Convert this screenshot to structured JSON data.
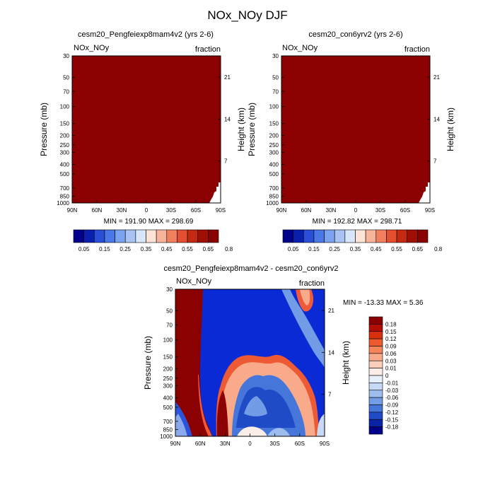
{
  "figure": {
    "title": "NOx_NOy DJF"
  },
  "chart_data": [
    {
      "type": "heatmap",
      "title": "cesm20_Pengfeiexp8mam4v2 (yrs 2-6)",
      "left_label": "NOx_NOy",
      "right_label": "fraction",
      "ylabel": "Pressure (mb)",
      "ylabel_right": "Height (km)",
      "x_ticks": [
        "90N",
        "60N",
        "30N",
        "0",
        "30S",
        "60S",
        "90S"
      ],
      "y_ticks": [
        "30",
        "50",
        "70",
        "100",
        "150",
        "200",
        "250",
        "300",
        "400",
        "500",
        "700",
        "850",
        "1000"
      ],
      "y_ticks_right": [
        "21",
        "14",
        "7"
      ],
      "stats": "MIN = 191.90   MAX = 298.69",
      "min": 191.9,
      "max": 298.69,
      "fill_color": "#8b0000",
      "colorbar_labels": [
        "0.05",
        "0.15",
        "0.25",
        "0.35",
        "0.45",
        "0.55",
        "0.65",
        "0.8"
      ],
      "colorbar_orientation": "horizontal"
    },
    {
      "type": "heatmap",
      "title": "cesm20_con6yrv2 (yrs 2-6)",
      "left_label": "NOx_NOy",
      "right_label": "fraction",
      "ylabel": "Pressure (mb)",
      "ylabel_right": "Height (km)",
      "x_ticks": [
        "90N",
        "60N",
        "30N",
        "0",
        "30S",
        "60S",
        "90S"
      ],
      "y_ticks": [
        "30",
        "50",
        "70",
        "100",
        "150",
        "200",
        "250",
        "300",
        "400",
        "500",
        "700",
        "850",
        "1000"
      ],
      "y_ticks_right": [
        "21",
        "14",
        "7"
      ],
      "stats": "MIN = 192.82   MAX = 298.71",
      "min": 192.82,
      "max": 298.71,
      "fill_color": "#8b0000",
      "colorbar_labels": [
        "0.05",
        "0.15",
        "0.25",
        "0.35",
        "0.45",
        "0.55",
        "0.65",
        "0.8"
      ],
      "colorbar_orientation": "horizontal"
    },
    {
      "type": "heatmap",
      "title": "cesm20_Pengfeiexp8mam4v2 - cesm20_con6yrv2",
      "left_label": "NOx_NOy",
      "right_label": "fraction",
      "ylabel": "Pressure (mb)",
      "ylabel_right": "Height (km)",
      "x_ticks": [
        "90N",
        "60N",
        "30N",
        "0",
        "30S",
        "60S",
        "90S"
      ],
      "y_ticks": [
        "30",
        "50",
        "70",
        "100",
        "150",
        "200",
        "250",
        "300",
        "400",
        "500",
        "700",
        "850",
        "1000"
      ],
      "y_ticks_right": [
        "21",
        "14",
        "7"
      ],
      "stats": "MIN = -13.33  MAX =   5.36",
      "min": -13.33,
      "max": 5.36,
      "colorbar_labels": [
        "0.18",
        "0.15",
        "0.12",
        "0.09",
        "0.06",
        "0.03",
        "0.01",
        "0",
        "-0.01",
        "-0.03",
        "-0.06",
        "-0.09",
        "-0.12",
        "-0.15",
        "-0.18"
      ],
      "colorbar_orientation": "vertical"
    }
  ],
  "colors": {
    "dark_red": "#8b0000",
    "dark_blue": "#00008b",
    "blue": "#0a2ad6",
    "seq_colorbar": [
      "#00008b",
      "#0a1fae",
      "#2a4fd6",
      "#4a78e6",
      "#7aa2ee",
      "#a8c3f2",
      "#d8e6fa",
      "#fde3d6",
      "#f8b49a",
      "#f1805e",
      "#e4502f",
      "#c42a12",
      "#a00f05",
      "#8b0000"
    ],
    "div_colorbar": [
      "#8b0000",
      "#b40d02",
      "#d7300e",
      "#ec5a2d",
      "#f4845a",
      "#f8aa8a",
      "#fbcfbc",
      "#fbeee8",
      "#e8f0fb",
      "#c7d9f6",
      "#9ebdef",
      "#729de6",
      "#4676da",
      "#1f4bc6",
      "#0a24a8",
      "#00008b"
    ]
  }
}
